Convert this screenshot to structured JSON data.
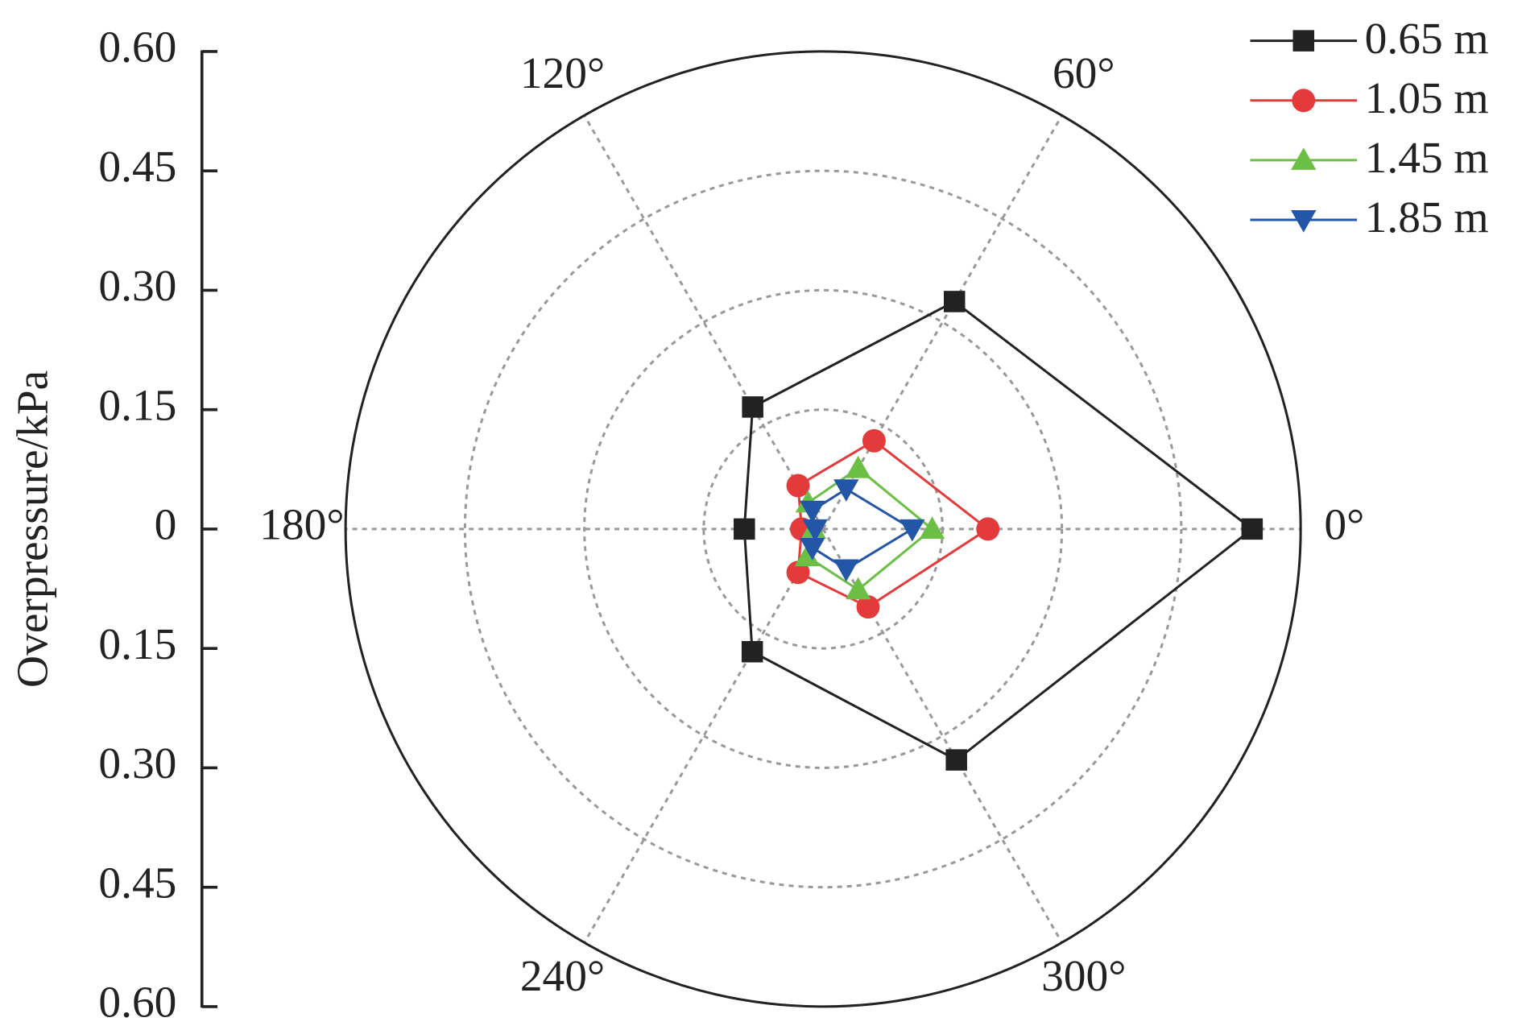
{
  "chart_data": {
    "type": "polar",
    "y_label": "Overpressure/kPa",
    "theta": [
      0,
      60,
      120,
      180,
      240,
      300
    ],
    "closed": true,
    "rlim": [
      0,
      0.6
    ],
    "rticks": [
      0.15,
      0.3,
      0.45
    ],
    "thetaticks": [
      {
        "value": 0,
        "label": "0°"
      },
      {
        "value": 60,
        "label": "60°"
      },
      {
        "value": 120,
        "label": "120°"
      },
      {
        "value": 180,
        "label": "180°"
      },
      {
        "value": 240,
        "label": "240°"
      },
      {
        "value": 300,
        "label": "300°"
      }
    ],
    "ylim": [
      -0.6,
      0.6
    ],
    "yticks": [
      {
        "value": 0.6,
        "label": "0.60"
      },
      {
        "value": 0.45,
        "label": "0.45"
      },
      {
        "value": 0.3,
        "label": "0.30"
      },
      {
        "value": 0.15,
        "label": "0.15"
      },
      0,
      {
        "value": -0.15,
        "label": "0.15"
      },
      {
        "value": -0.3,
        "label": "0.30"
      },
      {
        "value": -0.45,
        "label": "0.45"
      },
      {
        "value": -0.6,
        "label": "0.60"
      }
    ],
    "grid": true,
    "legend": "top-right",
    "series": [
      {
        "name": "0.65 m",
        "color": "#222222",
        "marker": "square",
        "values": [
          0.539,
          0.33,
          0.177,
          0.099,
          0.178,
          0.335
        ]
      },
      {
        "name": "1.05 m",
        "color": "#e33b3b",
        "marker": "circle",
        "values": [
          0.207,
          0.128,
          0.063,
          0.027,
          0.063,
          0.113
        ]
      },
      {
        "name": "1.45 m",
        "color": "#6cbf45",
        "marker": "triangle-up",
        "values": [
          0.137,
          0.088,
          0.038,
          0.012,
          0.04,
          0.088
        ]
      },
      {
        "name": "1.85 m",
        "color": "#2456a8",
        "marker": "triangle-down",
        "values": [
          0.112,
          0.058,
          0.027,
          0.01,
          0.027,
          0.058
        ]
      }
    ]
  }
}
